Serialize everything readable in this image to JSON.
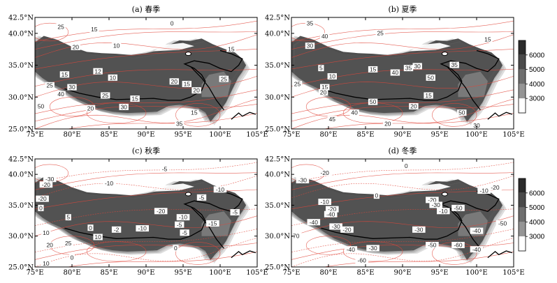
{
  "x_ticks": [
    "75°E",
    "80°E",
    "85°E",
    "90°E",
    "95°E",
    "100°E",
    "105°E"
  ],
  "y_ticks": [
    "42.5°N",
    "40.0°N",
    "35.0°N",
    "30.0°N",
    "25.0°N"
  ],
  "panels": [
    {
      "title": "(a) 春季",
      "labels": [
        {
          "lon": 78.5,
          "lat": 41.0,
          "text": "25"
        },
        {
          "lon": 83.0,
          "lat": 40.6,
          "text": "15"
        },
        {
          "lon": 80.5,
          "lat": 37.8,
          "text": "20"
        },
        {
          "lon": 86.0,
          "lat": 38.0,
          "text": "10"
        },
        {
          "lon": 93.5,
          "lat": 41.5,
          "text": "0"
        },
        {
          "lon": 101.5,
          "lat": 37.5,
          "text": "15"
        },
        {
          "lon": 79.0,
          "lat": 33.5,
          "text": "15"
        },
        {
          "lon": 83.5,
          "lat": 34.0,
          "text": "12"
        },
        {
          "lon": 85.5,
          "lat": 33.0,
          "text": "10"
        },
        {
          "lon": 77.0,
          "lat": 31.8,
          "text": "25"
        },
        {
          "lon": 80.0,
          "lat": 31.5,
          "text": "30"
        },
        {
          "lon": 78.5,
          "lat": 30.4,
          "text": "40"
        },
        {
          "lon": 84.5,
          "lat": 30.2,
          "text": "25"
        },
        {
          "lon": 88.5,
          "lat": 29.7,
          "text": "15"
        },
        {
          "lon": 93.8,
          "lat": 32.4,
          "text": "20"
        },
        {
          "lon": 95.5,
          "lat": 32.0,
          "text": "15"
        },
        {
          "lon": 96.8,
          "lat": 31.0,
          "text": "20"
        },
        {
          "lon": 100.5,
          "lat": 32.8,
          "text": "25"
        },
        {
          "lon": 82.5,
          "lat": 28.2,
          "text": "20"
        },
        {
          "lon": 87.0,
          "lat": 28.4,
          "text": "30"
        },
        {
          "lon": 96.5,
          "lat": 27.5,
          "text": "15"
        },
        {
          "lon": 94.5,
          "lat": 25.8,
          "text": "35"
        },
        {
          "lon": 75.8,
          "lat": 28.5,
          "text": "50"
        }
      ]
    },
    {
      "title": "(b) 夏季",
      "labels": [
        {
          "lon": 77.5,
          "lat": 41.5,
          "text": "35"
        },
        {
          "lon": 79.5,
          "lat": 39.5,
          "text": "40"
        },
        {
          "lon": 77.5,
          "lat": 38.0,
          "text": "30"
        },
        {
          "lon": 87.0,
          "lat": 40.0,
          "text": "25"
        },
        {
          "lon": 101.5,
          "lat": 39.0,
          "text": "15"
        },
        {
          "lon": 79.0,
          "lat": 34.5,
          "text": "5"
        },
        {
          "lon": 80.5,
          "lat": 33.2,
          "text": "10"
        },
        {
          "lon": 86.0,
          "lat": 34.3,
          "text": "15"
        },
        {
          "lon": 89.0,
          "lat": 33.8,
          "text": "40"
        },
        {
          "lon": 90.8,
          "lat": 34.5,
          "text": "35"
        },
        {
          "lon": 92.0,
          "lat": 34.8,
          "text": "30"
        },
        {
          "lon": 97.0,
          "lat": 35.0,
          "text": "35"
        },
        {
          "lon": 93.8,
          "lat": 33.0,
          "text": "50"
        },
        {
          "lon": 75.8,
          "lat": 32.0,
          "text": "25"
        },
        {
          "lon": 79.5,
          "lat": 31.5,
          "text": "15"
        },
        {
          "lon": 79.3,
          "lat": 30.7,
          "text": "20"
        },
        {
          "lon": 86.0,
          "lat": 29.2,
          "text": "50"
        },
        {
          "lon": 91.5,
          "lat": 28.5,
          "text": "20"
        },
        {
          "lon": 93.5,
          "lat": 30.2,
          "text": "15"
        },
        {
          "lon": 83.5,
          "lat": 27.5,
          "text": "40"
        },
        {
          "lon": 80.5,
          "lat": 26.5,
          "text": "45"
        },
        {
          "lon": 98.0,
          "lat": 27.5,
          "text": "50"
        },
        {
          "lon": 100.0,
          "lat": 25.5,
          "text": "30"
        },
        {
          "lon": 88.0,
          "lat": 25.8,
          "text": "20"
        }
      ]
    },
    {
      "title": "(c) 秋季",
      "labels": [
        {
          "lon": 92.5,
          "lat": 40.8,
          "text": "-5"
        },
        {
          "lon": 77.0,
          "lat": 39.2,
          "text": "-30"
        },
        {
          "lon": 76.5,
          "lat": 38.3,
          "text": "-20"
        },
        {
          "lon": 85.0,
          "lat": 38.5,
          "text": "-10"
        },
        {
          "lon": 100.0,
          "lat": 37.5,
          "text": "-10"
        },
        {
          "lon": 97.5,
          "lat": 36.2,
          "text": "-5"
        },
        {
          "lon": 76.0,
          "lat": 36.0,
          "text": "-20"
        },
        {
          "lon": 75.8,
          "lat": 34.5,
          "text": "0"
        },
        {
          "lon": 79.5,
          "lat": 33.0,
          "text": "5"
        },
        {
          "lon": 82.5,
          "lat": 31.3,
          "text": "0"
        },
        {
          "lon": 86.0,
          "lat": 31.0,
          "text": "-2"
        },
        {
          "lon": 89.5,
          "lat": 31.2,
          "text": "-10"
        },
        {
          "lon": 92.0,
          "lat": 34.0,
          "text": "-20"
        },
        {
          "lon": 95.0,
          "lat": 33.0,
          "text": "-10"
        },
        {
          "lon": 94.5,
          "lat": 31.8,
          "text": "-5"
        },
        {
          "lon": 95.2,
          "lat": 30.5,
          "text": "-5"
        },
        {
          "lon": 99.0,
          "lat": 32.0,
          "text": "-15"
        },
        {
          "lon": 102.0,
          "lat": 33.8,
          "text": "-5"
        },
        {
          "lon": 76.5,
          "lat": 30.5,
          "text": "10"
        },
        {
          "lon": 77.0,
          "lat": 28.5,
          "text": "20"
        },
        {
          "lon": 79.5,
          "lat": 28.8,
          "text": "25"
        },
        {
          "lon": 83.5,
          "lat": 29.8,
          "text": "10"
        },
        {
          "lon": 76.5,
          "lat": 25.5,
          "text": "10"
        },
        {
          "lon": 80.0,
          "lat": 26.5,
          "text": "0"
        },
        {
          "lon": 94.0,
          "lat": 28.0,
          "text": "0"
        }
      ]
    },
    {
      "title": "(d) 冬季",
      "labels": [
        {
          "lon": 90.5,
          "lat": 41.3,
          "text": "0"
        },
        {
          "lon": 76.5,
          "lat": 39.0,
          "text": "-30"
        },
        {
          "lon": 79.5,
          "lat": 40.2,
          "text": "-20"
        },
        {
          "lon": 86.5,
          "lat": 36.5,
          "text": "0"
        },
        {
          "lon": 101.0,
          "lat": 37.3,
          "text": "-10"
        },
        {
          "lon": 102.5,
          "lat": 37.8,
          "text": "-20"
        },
        {
          "lon": 79.5,
          "lat": 35.5,
          "text": "-10"
        },
        {
          "lon": 80.5,
          "lat": 34.3,
          "text": "-20"
        },
        {
          "lon": 80.3,
          "lat": 33.5,
          "text": "-40"
        },
        {
          "lon": 78.0,
          "lat": 32.2,
          "text": "-40"
        },
        {
          "lon": 81.0,
          "lat": 31.5,
          "text": "-30"
        },
        {
          "lon": 82.5,
          "lat": 31.0,
          "text": "-20"
        },
        {
          "lon": 94.0,
          "lat": 35.8,
          "text": "-20"
        },
        {
          "lon": 94.5,
          "lat": 35.0,
          "text": "-30"
        },
        {
          "lon": 95.5,
          "lat": 34.0,
          "text": "-10"
        },
        {
          "lon": 97.5,
          "lat": 34.5,
          "text": "-50"
        },
        {
          "lon": 92.2,
          "lat": 31.0,
          "text": "-30"
        },
        {
          "lon": 100.0,
          "lat": 30.8,
          "text": "-40"
        },
        {
          "lon": 75.5,
          "lat": 30.0,
          "text": "-70"
        },
        {
          "lon": 86.0,
          "lat": 28.0,
          "text": "-30"
        },
        {
          "lon": 83.0,
          "lat": 27.8,
          "text": "-40"
        },
        {
          "lon": 84.5,
          "lat": 26.0,
          "text": "-60"
        },
        {
          "lon": 94.0,
          "lat": 28.5,
          "text": "-50"
        },
        {
          "lon": 97.5,
          "lat": 28.5,
          "text": "-60"
        },
        {
          "lon": 100.0,
          "lat": 27.8,
          "text": "-40"
        },
        {
          "lon": 103.5,
          "lat": 32.0,
          "text": "-50"
        }
      ]
    }
  ],
  "colorbar": {
    "ticks": [
      "6000",
      "5000",
      "4000",
      "3000"
    ],
    "colors": [
      "#2b2b2b",
      "#4a4a4a",
      "#6e6e6e",
      "#959595",
      "#ffffff"
    ]
  }
}
